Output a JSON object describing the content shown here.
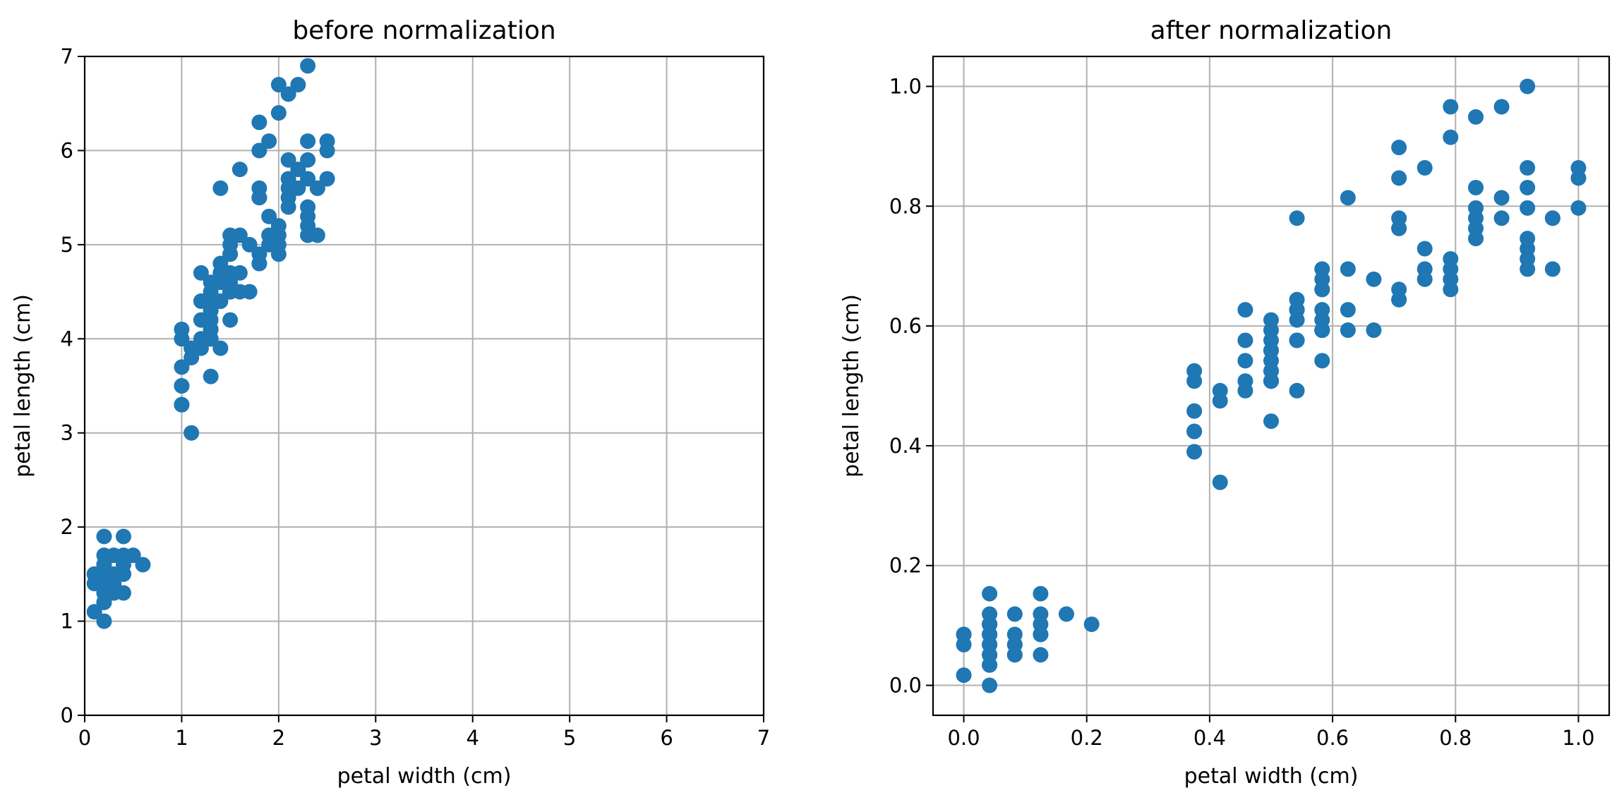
{
  "chart_data": [
    {
      "type": "scatter",
      "title": "before normalization",
      "xlabel": "petal width (cm)",
      "ylabel": "petal length (cm)",
      "xlim": [
        0,
        7
      ],
      "ylim": [
        0,
        7
      ],
      "xticks": [
        0,
        1,
        2,
        3,
        4,
        5,
        6,
        7
      ],
      "yticks": [
        0,
        1,
        2,
        3,
        4,
        5,
        6,
        7
      ],
      "xtick_labels": [
        "0",
        "1",
        "2",
        "3",
        "4",
        "5",
        "6",
        "7"
      ],
      "ytick_labels": [
        "0",
        "1",
        "2",
        "3",
        "4",
        "5",
        "6",
        "7"
      ],
      "grid": true,
      "color": "#1f77b4",
      "points": [
        [
          0.2,
          1.4
        ],
        [
          0.2,
          1.3
        ],
        [
          0.2,
          1.5
        ],
        [
          0.2,
          1.4
        ],
        [
          0.4,
          1.7
        ],
        [
          0.3,
          1.4
        ],
        [
          0.2,
          1.5
        ],
        [
          0.1,
          1.5
        ],
        [
          0.2,
          1.5
        ],
        [
          0.2,
          1.6
        ],
        [
          0.1,
          1.4
        ],
        [
          0.1,
          1.1
        ],
        [
          0.2,
          1.2
        ],
        [
          0.4,
          1.5
        ],
        [
          0.4,
          1.3
        ],
        [
          0.3,
          1.4
        ],
        [
          0.3,
          1.7
        ],
        [
          0.3,
          1.5
        ],
        [
          0.2,
          1.7
        ],
        [
          0.4,
          1.5
        ],
        [
          0.2,
          1.0
        ],
        [
          0.5,
          1.7
        ],
        [
          0.2,
          1.9
        ],
        [
          0.4,
          1.6
        ],
        [
          0.2,
          1.6
        ],
        [
          0.2,
          1.4
        ],
        [
          0.1,
          1.5
        ],
        [
          0.2,
          1.2
        ],
        [
          0.2,
          1.3
        ],
        [
          0.3,
          1.3
        ],
        [
          0.3,
          1.3
        ],
        [
          0.2,
          1.6
        ],
        [
          0.6,
          1.6
        ],
        [
          0.4,
          1.9
        ],
        [
          0.2,
          1.6
        ],
        [
          1.4,
          4.7
        ],
        [
          1.5,
          4.5
        ],
        [
          1.5,
          4.9
        ],
        [
          1.3,
          4.0
        ],
        [
          1.5,
          4.6
        ],
        [
          1.3,
          4.5
        ],
        [
          1.6,
          4.7
        ],
        [
          1.0,
          3.3
        ],
        [
          1.3,
          4.6
        ],
        [
          1.4,
          3.9
        ],
        [
          1.0,
          3.5
        ],
        [
          1.5,
          4.2
        ],
        [
          1.0,
          4.0
        ],
        [
          1.4,
          4.7
        ],
        [
          1.3,
          3.6
        ],
        [
          1.4,
          4.4
        ],
        [
          1.5,
          4.5
        ],
        [
          1.0,
          4.1
        ],
        [
          1.5,
          4.5
        ],
        [
          1.1,
          3.9
        ],
        [
          1.8,
          4.8
        ],
        [
          1.3,
          4.0
        ],
        [
          1.5,
          4.9
        ],
        [
          1.2,
          4.7
        ],
        [
          1.3,
          4.3
        ],
        [
          1.4,
          4.4
        ],
        [
          1.4,
          4.8
        ],
        [
          1.7,
          5.0
        ],
        [
          1.5,
          4.5
        ],
        [
          1.0,
          3.5
        ],
        [
          1.1,
          3.8
        ],
        [
          1.0,
          3.7
        ],
        [
          1.2,
          3.9
        ],
        [
          1.6,
          5.1
        ],
        [
          1.5,
          4.5
        ],
        [
          1.6,
          4.5
        ],
        [
          1.5,
          4.7
        ],
        [
          1.3,
          4.4
        ],
        [
          1.3,
          4.1
        ],
        [
          1.3,
          4.0
        ],
        [
          1.2,
          4.4
        ],
        [
          1.4,
          4.6
        ],
        [
          1.2,
          4.0
        ],
        [
          1.0,
          3.3
        ],
        [
          1.3,
          4.2
        ],
        [
          1.2,
          4.2
        ],
        [
          1.3,
          4.3
        ],
        [
          1.1,
          3.0
        ],
        [
          1.3,
          4.1
        ],
        [
          2.5,
          6.0
        ],
        [
          1.9,
          5.1
        ],
        [
          2.1,
          5.9
        ],
        [
          1.8,
          5.6
        ],
        [
          2.2,
          5.8
        ],
        [
          2.1,
          6.6
        ],
        [
          1.7,
          4.5
        ],
        [
          1.8,
          6.3
        ],
        [
          2.5,
          6.1
        ],
        [
          2.0,
          5.1
        ],
        [
          1.9,
          5.3
        ],
        [
          2.1,
          5.5
        ],
        [
          2.0,
          5.0
        ],
        [
          2.4,
          5.1
        ],
        [
          2.3,
          5.3
        ],
        [
          1.8,
          5.5
        ],
        [
          2.2,
          6.7
        ],
        [
          2.3,
          6.9
        ],
        [
          1.5,
          5.0
        ],
        [
          2.3,
          5.7
        ],
        [
          2.0,
          4.9
        ],
        [
          2.0,
          6.7
        ],
        [
          1.8,
          4.9
        ],
        [
          2.1,
          5.7
        ],
        [
          1.8,
          6.0
        ],
        [
          1.8,
          4.8
        ],
        [
          2.1,
          5.6
        ],
        [
          1.6,
          5.8
        ],
        [
          1.9,
          6.1
        ],
        [
          2.0,
          6.4
        ],
        [
          2.2,
          5.6
        ],
        [
          1.5,
          5.1
        ],
        [
          1.4,
          5.6
        ],
        [
          2.3,
          6.1
        ],
        [
          2.4,
          5.6
        ],
        [
          1.8,
          5.5
        ],
        [
          2.1,
          5.4
        ],
        [
          2.4,
          5.6
        ],
        [
          2.3,
          5.1
        ],
        [
          2.3,
          5.9
        ],
        [
          2.5,
          5.7
        ],
        [
          2.3,
          5.2
        ],
        [
          1.9,
          5.0
        ],
        [
          2.0,
          5.2
        ],
        [
          2.3,
          5.4
        ],
        [
          1.4,
          4.7
        ]
      ]
    },
    {
      "type": "scatter",
      "title": "after normalization",
      "xlabel": "petal width (cm)",
      "ylabel": "petal length (cm)",
      "xlim": [
        -0.05,
        1.05
      ],
      "ylim": [
        -0.05,
        1.05
      ],
      "xticks": [
        0.0,
        0.2,
        0.4,
        0.6,
        0.8,
        1.0
      ],
      "yticks": [
        0.0,
        0.2,
        0.4,
        0.6,
        0.8,
        1.0
      ],
      "xtick_labels": [
        "0.0",
        "0.2",
        "0.4",
        "0.6",
        "0.8",
        "1.0"
      ],
      "ytick_labels": [
        "0.0",
        "0.2",
        "0.4",
        "0.6",
        "0.8",
        "1.0"
      ],
      "grid": true,
      "color": "#1f77b4",
      "points": [
        [
          0.042,
          0.068
        ],
        [
          0.042,
          0.051
        ],
        [
          0.042,
          0.085
        ],
        [
          0.042,
          0.068
        ],
        [
          0.125,
          0.119
        ],
        [
          0.083,
          0.068
        ],
        [
          0.042,
          0.085
        ],
        [
          0.0,
          0.085
        ],
        [
          0.042,
          0.085
        ],
        [
          0.042,
          0.102
        ],
        [
          0.0,
          0.068
        ],
        [
          0.0,
          0.017
        ],
        [
          0.042,
          0.034
        ],
        [
          0.125,
          0.085
        ],
        [
          0.125,
          0.051
        ],
        [
          0.083,
          0.068
        ],
        [
          0.083,
          0.119
        ],
        [
          0.083,
          0.085
        ],
        [
          0.042,
          0.119
        ],
        [
          0.125,
          0.085
        ],
        [
          0.042,
          0.0
        ],
        [
          0.167,
          0.119
        ],
        [
          0.042,
          0.153
        ],
        [
          0.125,
          0.102
        ],
        [
          0.042,
          0.102
        ],
        [
          0.042,
          0.068
        ],
        [
          0.0,
          0.085
        ],
        [
          0.042,
          0.034
        ],
        [
          0.042,
          0.051
        ],
        [
          0.083,
          0.051
        ],
        [
          0.083,
          0.051
        ],
        [
          0.042,
          0.102
        ],
        [
          0.208,
          0.102
        ],
        [
          0.125,
          0.153
        ],
        [
          0.042,
          0.102
        ],
        [
          0.542,
          0.627
        ],
        [
          0.583,
          0.593
        ],
        [
          0.583,
          0.661
        ],
        [
          0.5,
          0.508
        ],
        [
          0.583,
          0.61
        ],
        [
          0.5,
          0.593
        ],
        [
          0.625,
          0.627
        ],
        [
          0.375,
          0.39
        ],
        [
          0.5,
          0.61
        ],
        [
          0.542,
          0.492
        ],
        [
          0.375,
          0.424
        ],
        [
          0.583,
          0.542
        ],
        [
          0.375,
          0.508
        ],
        [
          0.542,
          0.627
        ],
        [
          0.5,
          0.441
        ],
        [
          0.542,
          0.576
        ],
        [
          0.583,
          0.593
        ],
        [
          0.375,
          0.525
        ],
        [
          0.583,
          0.593
        ],
        [
          0.417,
          0.492
        ],
        [
          0.708,
          0.644
        ],
        [
          0.5,
          0.508
        ],
        [
          0.583,
          0.661
        ],
        [
          0.458,
          0.627
        ],
        [
          0.5,
          0.559
        ],
        [
          0.542,
          0.576
        ],
        [
          0.542,
          0.644
        ],
        [
          0.667,
          0.678
        ],
        [
          0.583,
          0.593
        ],
        [
          0.375,
          0.424
        ],
        [
          0.417,
          0.475
        ],
        [
          0.375,
          0.458
        ],
        [
          0.458,
          0.492
        ],
        [
          0.625,
          0.695
        ],
        [
          0.583,
          0.593
        ],
        [
          0.625,
          0.593
        ],
        [
          0.583,
          0.627
        ],
        [
          0.5,
          0.576
        ],
        [
          0.5,
          0.525
        ],
        [
          0.5,
          0.508
        ],
        [
          0.458,
          0.576
        ],
        [
          0.542,
          0.61
        ],
        [
          0.458,
          0.508
        ],
        [
          0.375,
          0.39
        ],
        [
          0.5,
          0.542
        ],
        [
          0.458,
          0.542
        ],
        [
          0.5,
          0.559
        ],
        [
          0.417,
          0.339
        ],
        [
          0.5,
          0.525
        ],
        [
          1.0,
          0.847
        ],
        [
          0.75,
          0.695
        ],
        [
          0.833,
          0.831
        ],
        [
          0.708,
          0.78
        ],
        [
          0.875,
          0.814
        ],
        [
          0.833,
          0.949
        ],
        [
          0.667,
          0.593
        ],
        [
          0.708,
          0.898
        ],
        [
          1.0,
          0.864
        ],
        [
          0.792,
          0.695
        ],
        [
          0.75,
          0.729
        ],
        [
          0.833,
          0.763
        ],
        [
          0.792,
          0.678
        ],
        [
          0.958,
          0.695
        ],
        [
          0.917,
          0.729
        ],
        [
          0.708,
          0.763
        ],
        [
          0.875,
          0.966
        ],
        [
          0.917,
          1.0
        ],
        [
          0.583,
          0.678
        ],
        [
          0.917,
          0.797
        ],
        [
          0.792,
          0.661
        ],
        [
          0.792,
          0.966
        ],
        [
          0.708,
          0.661
        ],
        [
          0.833,
          0.797
        ],
        [
          0.708,
          0.847
        ],
        [
          0.708,
          0.644
        ],
        [
          0.833,
          0.78
        ],
        [
          0.625,
          0.814
        ],
        [
          0.75,
          0.864
        ],
        [
          0.792,
          0.915
        ],
        [
          0.875,
          0.78
        ],
        [
          0.583,
          0.695
        ],
        [
          0.542,
          0.78
        ],
        [
          0.917,
          0.864
        ],
        [
          0.958,
          0.78
        ],
        [
          0.708,
          0.763
        ],
        [
          0.833,
          0.746
        ],
        [
          0.958,
          0.78
        ],
        [
          0.917,
          0.695
        ],
        [
          0.917,
          0.831
        ],
        [
          1.0,
          0.797
        ],
        [
          0.917,
          0.712
        ],
        [
          0.75,
          0.678
        ],
        [
          0.792,
          0.712
        ],
        [
          0.917,
          0.746
        ],
        [
          0.542,
          0.627
        ]
      ]
    }
  ]
}
